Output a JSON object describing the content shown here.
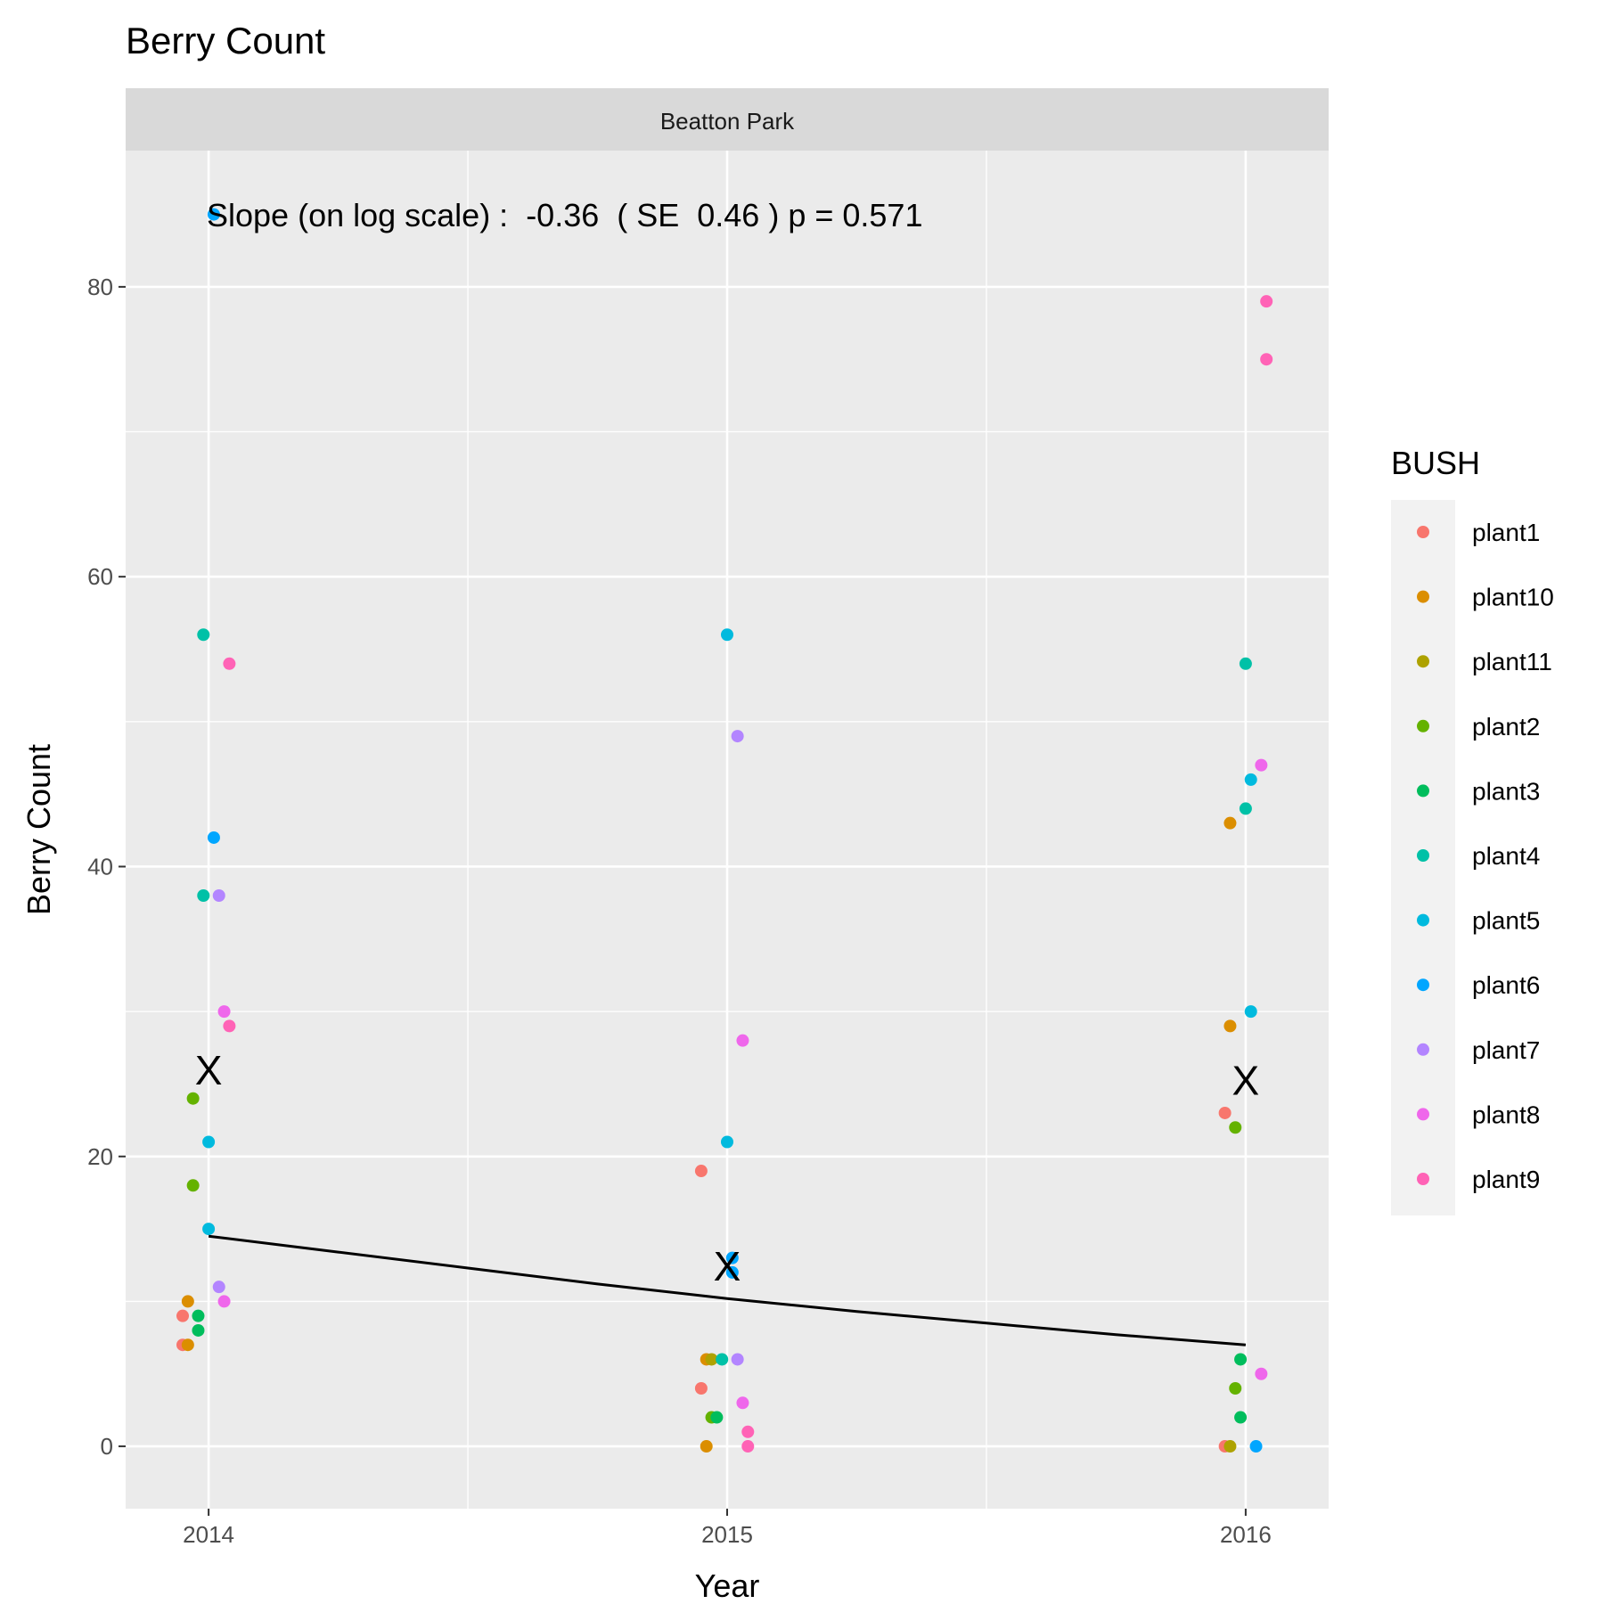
{
  "chart_data": {
    "type": "scatter",
    "title": "Berry Count",
    "facet_label": "Beatton Park",
    "xlabel": "Year",
    "ylabel": "Berry Count",
    "x_ticks": [
      "2014",
      "2015",
      "2016"
    ],
    "y_ticks": [
      0,
      20,
      40,
      60,
      80
    ],
    "xlim": [
      2013.84,
      2016.16
    ],
    "ylim": [
      -4.3,
      89.4
    ],
    "grid": true,
    "annotation": "Slope (on log scale) :  -0.36  ( SE  0.46 ) p = 0.571",
    "legend": {
      "title": "BUSH",
      "position": "right",
      "entries": [
        {
          "name": "plant1",
          "color": "#F8766D"
        },
        {
          "name": "plant10",
          "color": "#DB8E00"
        },
        {
          "name": "plant11",
          "color": "#AEA200"
        },
        {
          "name": "plant2",
          "color": "#64B200"
        },
        {
          "name": "plant3",
          "color": "#00BD5C"
        },
        {
          "name": "plant4",
          "color": "#00C1A7"
        },
        {
          "name": "plant5",
          "color": "#00BADE"
        },
        {
          "name": "plant6",
          "color": "#00A6FF"
        },
        {
          "name": "plant7",
          "color": "#B385FF"
        },
        {
          "name": "plant8",
          "color": "#EF67EB"
        },
        {
          "name": "plant9",
          "color": "#FF63B6"
        }
      ]
    },
    "series": [
      {
        "name": "plant1",
        "color": "#F8766D",
        "points": [
          {
            "x": 2013.95,
            "y": 9
          },
          {
            "x": 2013.95,
            "y": 7
          },
          {
            "x": 2014.95,
            "y": 19
          },
          {
            "x": 2014.95,
            "y": 4
          },
          {
            "x": 2015.96,
            "y": 23
          },
          {
            "x": 2015.96,
            "y": 0
          }
        ]
      },
      {
        "name": "plant10",
        "color": "#DB8E00",
        "points": [
          {
            "x": 2013.96,
            "y": 10
          },
          {
            "x": 2013.96,
            "y": 7
          },
          {
            "x": 2014.96,
            "y": 6
          },
          {
            "x": 2014.96,
            "y": 0
          },
          {
            "x": 2015.97,
            "y": 43
          },
          {
            "x": 2015.97,
            "y": 29
          }
        ]
      },
      {
        "name": "plant11",
        "color": "#AEA200",
        "points": [
          {
            "x": 2014.97,
            "y": 6
          },
          {
            "x": 2015.97,
            "y": 0
          }
        ]
      },
      {
        "name": "plant2",
        "color": "#64B200",
        "points": [
          {
            "x": 2013.97,
            "y": 24
          },
          {
            "x": 2013.97,
            "y": 18
          },
          {
            "x": 2014.97,
            "y": 2
          },
          {
            "x": 2015.98,
            "y": 22
          },
          {
            "x": 2015.98,
            "y": 4
          }
        ]
      },
      {
        "name": "plant3",
        "color": "#00BD5C",
        "points": [
          {
            "x": 2013.98,
            "y": 9
          },
          {
            "x": 2013.98,
            "y": 8
          },
          {
            "x": 2014.98,
            "y": 2
          },
          {
            "x": 2015.99,
            "y": 6
          },
          {
            "x": 2015.99,
            "y": 2
          }
        ]
      },
      {
        "name": "plant4",
        "color": "#00C1A7",
        "points": [
          {
            "x": 2013.99,
            "y": 56
          },
          {
            "x": 2013.99,
            "y": 38
          },
          {
            "x": 2014.99,
            "y": 6
          },
          {
            "x": 2016.0,
            "y": 54
          },
          {
            "x": 2016.0,
            "y": 44
          }
        ]
      },
      {
        "name": "plant5",
        "color": "#00BADE",
        "points": [
          {
            "x": 2014.0,
            "y": 21
          },
          {
            "x": 2014.0,
            "y": 15
          },
          {
            "x": 2015.0,
            "y": 56
          },
          {
            "x": 2015.0,
            "y": 21
          },
          {
            "x": 2016.01,
            "y": 46
          },
          {
            "x": 2016.01,
            "y": 30
          }
        ]
      },
      {
        "name": "plant6",
        "color": "#00A6FF",
        "points": [
          {
            "x": 2014.01,
            "y": 85
          },
          {
            "x": 2014.01,
            "y": 42
          },
          {
            "x": 2015.01,
            "y": 13
          },
          {
            "x": 2015.01,
            "y": 12
          },
          {
            "x": 2016.02,
            "y": 0
          }
        ]
      },
      {
        "name": "plant7",
        "color": "#B385FF",
        "points": [
          {
            "x": 2014.02,
            "y": 38
          },
          {
            "x": 2014.02,
            "y": 11
          },
          {
            "x": 2015.02,
            "y": 49
          },
          {
            "x": 2015.02,
            "y": 6
          }
        ]
      },
      {
        "name": "plant8",
        "color": "#EF67EB",
        "points": [
          {
            "x": 2014.03,
            "y": 30
          },
          {
            "x": 2014.03,
            "y": 10
          },
          {
            "x": 2015.03,
            "y": 28
          },
          {
            "x": 2015.03,
            "y": 3
          },
          {
            "x": 2016.03,
            "y": 47
          },
          {
            "x": 2016.03,
            "y": 5
          }
        ]
      },
      {
        "name": "plant9",
        "color": "#FF63B6",
        "points": [
          {
            "x": 2014.04,
            "y": 54
          },
          {
            "x": 2014.04,
            "y": 29
          },
          {
            "x": 2015.04,
            "y": 1
          },
          {
            "x": 2015.04,
            "y": 0
          },
          {
            "x": 2016.04,
            "y": 79
          },
          {
            "x": 2016.04,
            "y": 75
          }
        ]
      }
    ],
    "means": [
      {
        "x": 2014,
        "y": 26
      },
      {
        "x": 2015,
        "y": 12.5
      },
      {
        "x": 2016,
        "y": 25.3
      }
    ],
    "fit_line": [
      {
        "x": 2014,
        "y": 14.5
      },
      {
        "x": 2014.25,
        "y": 13.4
      },
      {
        "x": 2014.5,
        "y": 12.3
      },
      {
        "x": 2014.75,
        "y": 11.2
      },
      {
        "x": 2015,
        "y": 10.2
      },
      {
        "x": 2015.25,
        "y": 9.3
      },
      {
        "x": 2015.5,
        "y": 8.5
      },
      {
        "x": 2015.75,
        "y": 7.7
      },
      {
        "x": 2016,
        "y": 7.0
      }
    ],
    "mean_marker": "X"
  }
}
